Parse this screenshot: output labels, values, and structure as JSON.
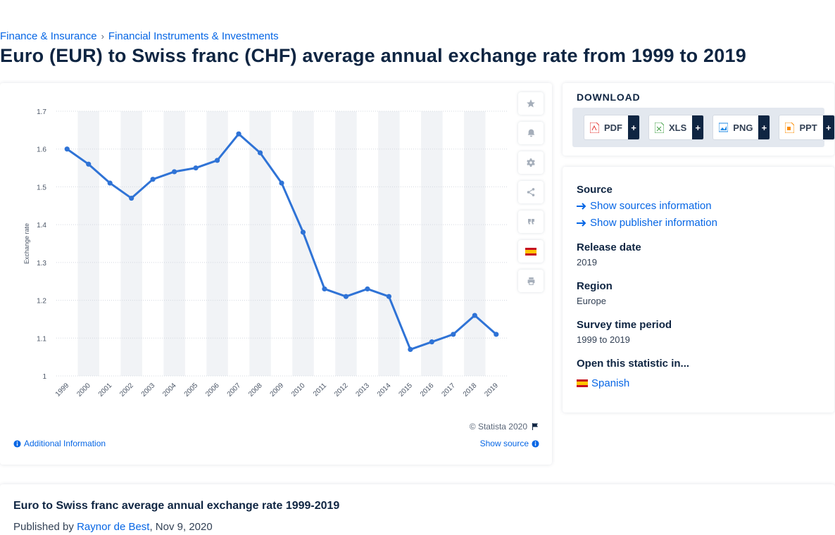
{
  "breadcrumb": {
    "item1": "Finance & Insurance",
    "separator": "›",
    "item2": "Financial Instruments & Investments"
  },
  "page_title": "Euro (EUR) to Swiss franc (CHF) average annual exchange rate from 1999 to 2019",
  "chart_data": {
    "type": "line",
    "x": [
      "1999",
      "2000",
      "2001",
      "2002",
      "2003",
      "2004",
      "2005",
      "2006",
      "2007",
      "2008",
      "2009",
      "2010",
      "2011",
      "2012",
      "2013",
      "2014",
      "2015",
      "2016",
      "2017",
      "2018",
      "2019"
    ],
    "series": [
      {
        "values": [
          1.6,
          1.56,
          1.51,
          1.47,
          1.52,
          1.54,
          1.55,
          1.57,
          1.64,
          1.59,
          1.51,
          1.38,
          1.23,
          1.21,
          1.23,
          1.21,
          1.07,
          1.09,
          1.11,
          1.16,
          1.11
        ]
      }
    ],
    "ylabel": "Exchange rate",
    "yticks": [
      "1",
      "1.1",
      "1.2",
      "1.3",
      "1.4",
      "1.5",
      "1.6",
      "1.7"
    ],
    "ylim": [
      1,
      1.7
    ],
    "grid": true,
    "alternating_column_bands": true,
    "line_color": "#2f73d6"
  },
  "chart_footer": {
    "copyright": "© Statista 2020",
    "additional": "Additional Information",
    "show_source": "Show source"
  },
  "toolbar": {
    "icons": [
      "star-icon",
      "bell-icon",
      "gear-icon",
      "share-icon",
      "quote-icon",
      "spanish-flag-icon",
      "print-icon"
    ]
  },
  "download": {
    "title": "DOWNLOAD",
    "buttons": [
      {
        "label": "PDF",
        "plus": "+",
        "color": "#e53935"
      },
      {
        "label": "XLS",
        "plus": "+",
        "color": "#43a047"
      },
      {
        "label": "PNG",
        "plus": "+",
        "color": "#1e88e5"
      },
      {
        "label": "PPT",
        "plus": "+",
        "color": "#fb8c00"
      }
    ]
  },
  "info": {
    "source_label": "Source",
    "show_sources": "Show sources information",
    "show_publisher": "Show publisher information",
    "release_label": "Release date",
    "release_value": "2019",
    "region_label": "Region",
    "region_value": "Europe",
    "period_label": "Survey time period",
    "period_value": "1999 to 2019",
    "open_label": "Open this statistic in...",
    "language": "Spanish"
  },
  "bottom": {
    "title": "Euro to Swiss franc average annual exchange rate 1999-2019",
    "published_prefix": "Published by",
    "author": "Raynor de Best",
    "date": ", Nov 9, 2020"
  },
  "colors": {
    "accent": "#0666e5",
    "navy": "#0f2542",
    "band": "#f1f3f6"
  }
}
